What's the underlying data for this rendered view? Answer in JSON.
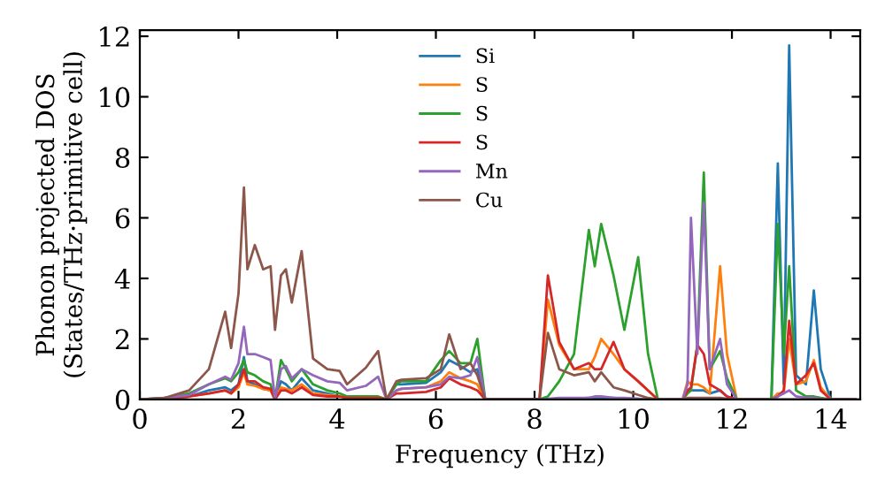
{
  "chart_data": {
    "type": "line",
    "xlabel": "Frequency (THz)",
    "ylabel": "Phonon projected DOS\n(States/THz·primitive cell)",
    "x": [
      0,
      0.5,
      1.0,
      1.4,
      1.73,
      1.85,
      2.0,
      2.11,
      2.18,
      2.33,
      2.5,
      2.65,
      2.74,
      2.86,
      2.96,
      3.08,
      3.28,
      3.51,
      3.8,
      4.05,
      4.2,
      4.58,
      4.83,
      5.0,
      5.2,
      5.3,
      5.8,
      6.1,
      6.27,
      6.5,
      6.7,
      6.84,
      7.0,
      8.1,
      8.27,
      8.5,
      8.8,
      9.1,
      9.22,
      9.35,
      9.6,
      9.82,
      10.1,
      10.3,
      10.5,
      11.0,
      11.1,
      11.17,
      11.3,
      11.43,
      11.55,
      11.76,
      11.9,
      12.1,
      12.8,
      12.93,
      13.05,
      13.16,
      13.3,
      13.5,
      13.66,
      13.8,
      14.0,
      14.5
    ],
    "series": [
      {
        "name": "Si",
        "color": "#1f77b4",
        "values": [
          0,
          0.02,
          0.1,
          0.3,
          0.4,
          0.3,
          0.5,
          1.4,
          0.6,
          0.5,
          0.35,
          0.3,
          0,
          0.6,
          0.5,
          0.3,
          0.7,
          0.3,
          0.2,
          0.1,
          0.05,
          0.05,
          0.05,
          0,
          0.5,
          0.5,
          0.55,
          0.9,
          1.3,
          1.1,
          0.9,
          1.0,
          0,
          0,
          0,
          0.02,
          0.03,
          0.05,
          0.05,
          0.05,
          0.05,
          0.03,
          0.02,
          0.01,
          0,
          0,
          0.3,
          0.3,
          0.3,
          0.3,
          0.2,
          0.3,
          0.1,
          0,
          0,
          7.8,
          0.5,
          11.7,
          0.8,
          0.5,
          3.6,
          1.0,
          0,
          0
        ]
      },
      {
        "name": "S",
        "color": "#ff7f0e",
        "values": [
          0,
          0.02,
          0.1,
          0.2,
          0.3,
          0.2,
          0.4,
          0.9,
          0.5,
          0.45,
          0.35,
          0.3,
          0,
          0.4,
          0.35,
          0.3,
          0.5,
          0.2,
          0.15,
          0.1,
          0.05,
          0.05,
          0.05,
          0,
          0.3,
          0.35,
          0.4,
          0.6,
          0.9,
          0.7,
          0.6,
          0.5,
          0,
          0,
          3.3,
          1.8,
          1.0,
          1.0,
          1.4,
          2.0,
          1.5,
          1.0,
          0.6,
          0.3,
          0,
          0,
          0.6,
          0.5,
          0.5,
          0.4,
          0.2,
          4.4,
          1.5,
          0,
          0,
          0.2,
          0.2,
          2.0,
          0.5,
          0.6,
          1.3,
          0.4,
          0,
          0
        ]
      },
      {
        "name": "S",
        "color": "#2ca02c",
        "values": [
          0,
          0.05,
          0.2,
          0.5,
          0.7,
          0.6,
          0.9,
          1.3,
          0.9,
          0.8,
          0.6,
          0.5,
          0,
          1.3,
          1.0,
          0.6,
          1.0,
          0.5,
          0.3,
          0.2,
          0.1,
          0.1,
          0.1,
          0,
          0.5,
          0.6,
          0.6,
          1.3,
          1.6,
          1.2,
          1.2,
          2.0,
          0,
          0,
          0.1,
          0.6,
          1.5,
          5.6,
          4.4,
          5.8,
          4.1,
          2.3,
          4.7,
          1.5,
          0,
          0,
          0.2,
          0.3,
          1.8,
          7.5,
          1.0,
          1.6,
          0.7,
          0,
          0,
          5.8,
          1.5,
          4.4,
          0.3,
          0.1,
          0.1,
          0.05,
          0,
          0
        ]
      },
      {
        "name": "S",
        "color": "#d62728",
        "values": [
          0,
          0.02,
          0.1,
          0.2,
          0.3,
          0.2,
          0.5,
          1.0,
          0.6,
          0.6,
          0.4,
          0.35,
          0,
          0.3,
          0.3,
          0.2,
          0.4,
          0.15,
          0.1,
          0.1,
          0.05,
          0.05,
          0.05,
          0,
          0.2,
          0.2,
          0.25,
          0.4,
          0.7,
          0.5,
          0.4,
          0.3,
          0,
          0,
          4.1,
          1.9,
          1.0,
          1.2,
          1.0,
          1.0,
          1.9,
          1.0,
          0.6,
          0.3,
          0,
          0,
          0.3,
          0.4,
          1.8,
          1.5,
          0.5,
          0.3,
          0.1,
          0,
          0,
          0.1,
          0.3,
          2.6,
          0.5,
          0.8,
          1.2,
          0.3,
          0,
          0
        ]
      },
      {
        "name": "Mn",
        "color": "#9467bd",
        "values": [
          0,
          0.05,
          0.15,
          0.5,
          0.75,
          0.65,
          1.2,
          2.4,
          1.5,
          1.5,
          1.4,
          1.3,
          0,
          1.0,
          1.1,
          0.7,
          1.0,
          0.8,
          0.6,
          0.55,
          0.3,
          0.45,
          0.75,
          0,
          0.3,
          0.35,
          0.4,
          0.5,
          0.75,
          0.7,
          0.8,
          1.4,
          0,
          0,
          0.02,
          0.05,
          0.05,
          0.05,
          0.1,
          0.1,
          0.05,
          0.05,
          0.02,
          0.01,
          0,
          0,
          0.5,
          6.0,
          1.5,
          6.5,
          1.0,
          2.0,
          0.5,
          0,
          0,
          0.1,
          0.2,
          0.3,
          0.1,
          0.05,
          0.05,
          0.02,
          0,
          0
        ]
      },
      {
        "name": "Cu",
        "color": "#8c564b",
        "values": [
          0,
          0.05,
          0.3,
          1.0,
          2.9,
          1.7,
          3.5,
          7.0,
          4.3,
          5.1,
          4.3,
          4.4,
          2.3,
          4.1,
          4.3,
          3.2,
          4.9,
          1.35,
          1.0,
          0.94,
          0.5,
          1.05,
          1.6,
          0,
          0.6,
          0.65,
          0.7,
          1.0,
          2.15,
          1.0,
          1.2,
          0.8,
          0,
          0,
          2.2,
          1.0,
          0.8,
          0.9,
          0.6,
          0.9,
          0.4,
          0.3,
          0.15,
          0.05,
          0,
          0,
          0.05,
          0.05,
          0.05,
          0.05,
          0.05,
          0.05,
          0.02,
          0,
          0,
          0,
          0,
          0,
          0,
          0,
          0,
          0,
          0,
          0
        ]
      }
    ],
    "xlim": [
      0,
      14.6
    ],
    "ylim": [
      0,
      12.2
    ],
    "xticks": [
      0,
      2,
      4,
      6,
      8,
      10,
      12,
      14
    ],
    "yticks": [
      0,
      2,
      4,
      6,
      8,
      10,
      12
    ],
    "grid": false,
    "legend": "top",
    "marker": "none",
    "line_style": "solid"
  }
}
